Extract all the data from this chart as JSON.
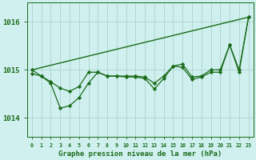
{
  "title": "Graphe pression niveau de la mer (hPa)",
  "bg_color": "#cff0ee",
  "grid_color": "#aad4cc",
  "line_color": "#1a6b1a",
  "marker_color": "#1a6b1a",
  "xlim": [
    -0.5,
    23.5
  ],
  "ylim": [
    1013.6,
    1016.4
  ],
  "yticks": [
    1014,
    1015,
    1016
  ],
  "xticks": [
    0,
    1,
    2,
    3,
    4,
    5,
    6,
    7,
    8,
    9,
    10,
    11,
    12,
    13,
    14,
    15,
    16,
    17,
    18,
    19,
    20,
    21,
    22,
    23
  ],
  "series1_x": [
    0,
    23
  ],
  "series1_y": [
    1015.0,
    1016.1
  ],
  "series2": [
    1014.92,
    1014.87,
    1014.75,
    1014.62,
    1014.55,
    1014.65,
    1014.95,
    1014.95,
    1014.87,
    1014.87,
    1014.87,
    1014.87,
    1014.85,
    1014.72,
    1014.87,
    1015.08,
    1015.12,
    1014.85,
    1014.87,
    1015.0,
    1015.0,
    1015.52,
    1015.0,
    1016.1
  ],
  "series3": [
    1015.0,
    1014.87,
    1014.72,
    1014.2,
    1014.25,
    1014.42,
    1014.72,
    1014.95,
    1014.87,
    1014.87,
    1014.85,
    1014.85,
    1014.82,
    1014.6,
    1014.82,
    1015.08,
    1015.05,
    1014.8,
    1014.85,
    1014.95,
    1014.95,
    1015.52,
    1014.95,
    1016.1
  ]
}
